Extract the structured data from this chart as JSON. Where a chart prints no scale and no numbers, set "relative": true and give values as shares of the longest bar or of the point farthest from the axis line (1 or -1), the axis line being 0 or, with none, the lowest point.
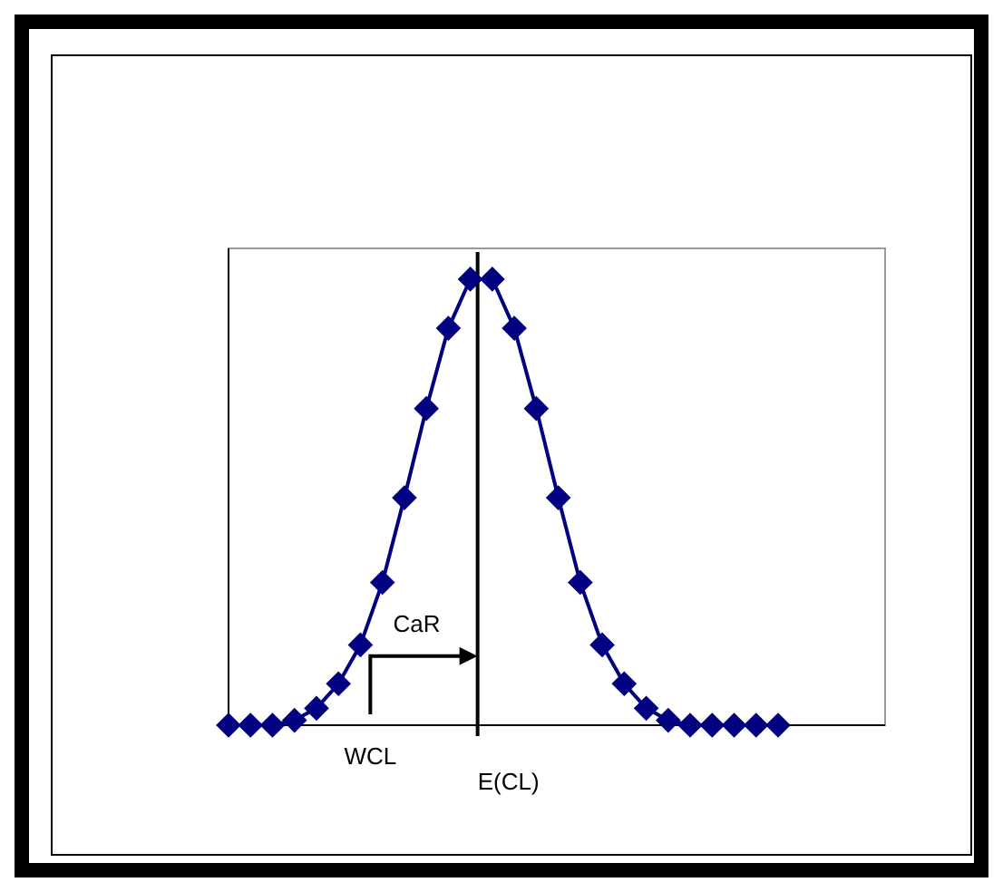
{
  "chart_data": {
    "type": "line",
    "relative": true,
    "marker": "diamond",
    "legend": false,
    "categories": [
      null,
      null,
      null,
      null,
      null,
      null,
      null,
      null,
      null,
      null,
      null,
      null,
      null,
      null,
      null,
      null,
      null,
      null,
      null,
      null,
      null,
      null,
      null,
      null,
      null,
      null
    ],
    "series": [
      {
        "color": "#000080",
        "values": [
          0,
          0,
          0,
          0.011,
          0.038,
          0.093,
          0.18,
          0.32,
          0.51,
          0.71,
          0.89,
          1,
          1,
          0.89,
          0.71,
          0.51,
          0.32,
          0.18,
          0.093,
          0.038,
          0.011,
          0,
          0,
          0,
          0,
          0
        ]
      }
    ],
    "annotations": [
      "CaR",
      "WCL",
      "E(CL)"
    ]
  }
}
